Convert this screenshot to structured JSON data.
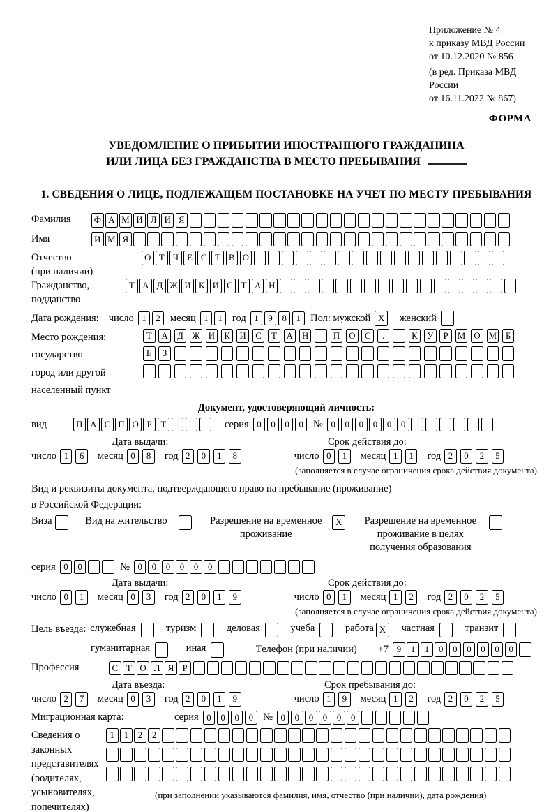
{
  "header": {
    "appendix_lines": [
      "Приложение № 4",
      "к приказу МВД России",
      "от 10.12.2020 № 856"
    ],
    "edition_lines": [
      "(в ред. Приказа МВД России",
      "от 16.11.2022 № 867)"
    ],
    "form_label": "ФОРМА"
  },
  "title": {
    "line1": "УВЕДОМЛЕНИЕ О ПРИБЫТИИ ИНОСТРАННОГО ГРАЖДАНИНА",
    "line2": "ИЛИ ЛИЦА БЕЗ ГРАЖДАНСТВА В МЕСТО ПРЕБЫВАНИЯ"
  },
  "section1_heading": "1. СВЕДЕНИЯ О ЛИЦЕ, ПОДЛЕЖАЩЕМ ПОСТАНОВКЕ НА УЧЕТ ПО МЕСТУ ПРЕБЫВАНИЯ",
  "person": {
    "surname": {
      "label": "Фамилия",
      "cells": {
        "count": 30,
        "value": "ФАМИЛИЯ"
      }
    },
    "name": {
      "label": "Имя",
      "cells": {
        "count": 30,
        "value": "ИМЯ"
      }
    },
    "patronymic": {
      "label1": "Отчество",
      "label2": "(при наличии)",
      "cells": {
        "count": 26,
        "value": "ОТЧЕСТВО"
      }
    },
    "citizenship": {
      "label1": "Гражданство,",
      "label2": "подданство",
      "cells": {
        "count": 28,
        "value": "ТАДЖИКИСТАН"
      }
    },
    "birth_date": {
      "label": "Дата рождения:",
      "day_label": "число",
      "day": {
        "count": 2,
        "value": "12"
      },
      "month_label": "месяц",
      "month": {
        "count": 2,
        "value": "11"
      },
      "year_label": "год",
      "year": {
        "count": 4,
        "value": "1981"
      }
    },
    "sex": {
      "label": "Пол: мужской",
      "male_box": {
        "count": 1,
        "value": "X"
      },
      "female_label": "женский",
      "female_box": {
        "count": 1,
        "value": ""
      }
    },
    "birth_place": {
      "label_lines": [
        "Место рождения:",
        "государство",
        "город или другой",
        "населенный пункт"
      ],
      "rows": [
        {
          "count": 24,
          "value": "ТАДЖИКИСТАН ПОС. КУРМОМБ"
        },
        {
          "count": 24,
          "value": "ЕЗ"
        },
        {
          "count": 24,
          "value": ""
        }
      ]
    }
  },
  "identity_doc": {
    "heading": "Документ, удостоверяющий личность:",
    "kind_label": "вид",
    "kind": {
      "count": 10,
      "value": "ПАСПОРТ"
    },
    "series_label": "серия",
    "series": {
      "count": 4,
      "value": "0000"
    },
    "number_label": "№",
    "number": {
      "count": 12,
      "value": "000000"
    },
    "issue_heading": "Дата выдачи:",
    "issue": {
      "day_label": "число",
      "day": {
        "count": 2,
        "value": "16"
      },
      "month_label": "месяц",
      "month": {
        "count": 2,
        "value": "08"
      },
      "year_label": "год",
      "year": {
        "count": 4,
        "value": "2018"
      }
    },
    "expiry_heading": "Срок действия до:",
    "expiry": {
      "day_label": "число",
      "day": {
        "count": 2,
        "value": "01"
      },
      "month_label": "месяц",
      "month": {
        "count": 2,
        "value": "11"
      },
      "year_label": "год",
      "year": {
        "count": 4,
        "value": "2025"
      }
    },
    "note": "(заполняется в случае ограничения срока действия документа)"
  },
  "stay_doc": {
    "intro_line1": "Вид и реквизиты документа, подтверждающего право на пребывание (проживание)",
    "intro_line2": "в Российской Федерации:",
    "options": [
      {
        "label": "Виза",
        "box": {
          "count": 1,
          "value": ""
        }
      },
      {
        "label": "Вид на жительство",
        "box": {
          "count": 1,
          "value": ""
        }
      },
      {
        "label": "Разрешение на временное проживание",
        "box": {
          "count": 1,
          "value": "X"
        }
      },
      {
        "label": "Разрешение на временное проживание в целях получения образования",
        "box": {
          "count": 1,
          "value": ""
        }
      }
    ],
    "series_label": "серия",
    "series": {
      "count": 4,
      "value": "00"
    },
    "number_label": "№",
    "number": {
      "count": 13,
      "value": "000000"
    },
    "issue_heading": "Дата выдачи:",
    "issue": {
      "day_label": "число",
      "day": {
        "count": 2,
        "value": "01"
      },
      "month_label": "месяц",
      "month": {
        "count": 2,
        "value": "03"
      },
      "year_label": "год",
      "year": {
        "count": 4,
        "value": "2019"
      }
    },
    "expiry_heading": "Срок действия до:",
    "expiry": {
      "day_label": "число",
      "day": {
        "count": 2,
        "value": "01"
      },
      "month_label": "месяц",
      "month": {
        "count": 2,
        "value": "12"
      },
      "year_label": "год",
      "year": {
        "count": 4,
        "value": "2025"
      }
    },
    "note": "(заполняется в случае ограничения срока действия документа)"
  },
  "visit": {
    "purpose_label": "Цель въезда:",
    "purpose_row1": [
      {
        "label": "служебная",
        "box": {
          "count": 1,
          "value": ""
        }
      },
      {
        "label": "туризм",
        "box": {
          "count": 1,
          "value": ""
        }
      },
      {
        "label": "деловая",
        "box": {
          "count": 1,
          "value": ""
        }
      },
      {
        "label": "учеба",
        "box": {
          "count": 1,
          "value": ""
        }
      },
      {
        "label": "работа",
        "box": {
          "count": 1,
          "value": "X"
        }
      },
      {
        "label": "частная",
        "box": {
          "count": 1,
          "value": ""
        }
      },
      {
        "label": "транзит",
        "box": {
          "count": 1,
          "value": ""
        }
      }
    ],
    "purpose_row2": [
      {
        "label": "гуманитарная",
        "box": {
          "count": 1,
          "value": ""
        }
      },
      {
        "label": "иная",
        "box": {
          "count": 1,
          "value": ""
        }
      }
    ],
    "phone_label": "Телефон (при наличии)",
    "phone_prefix": "+7",
    "phone": {
      "count": 10,
      "value": "911000000"
    }
  },
  "profession": {
    "label": "Профессия",
    "cells": {
      "count": 29,
      "value": "СТОЛЯР"
    }
  },
  "entry": {
    "date_heading": "Дата въезда:",
    "date": {
      "day_label": "число",
      "day": {
        "count": 2,
        "value": "27"
      },
      "month_label": "месяц",
      "month": {
        "count": 2,
        "value": "03"
      },
      "year_label": "год",
      "year": {
        "count": 4,
        "value": "2019"
      }
    },
    "until_heading": "Срок пребывания до:",
    "until": {
      "day_label": "число",
      "day": {
        "count": 2,
        "value": "19"
      },
      "month_label": "месяц",
      "month": {
        "count": 2,
        "value": "12"
      },
      "year_label": "год",
      "year": {
        "count": 4,
        "value": "2025"
      }
    }
  },
  "migration_card": {
    "label": "Миграционная карта:",
    "series_label": "серия",
    "series": {
      "count": 4,
      "value": "0000"
    },
    "number_label": "№",
    "number": {
      "count": 11,
      "value": "000000"
    }
  },
  "representatives": {
    "label_lines": [
      "Сведения о",
      "законных",
      "представителях",
      "(родителях,",
      "усыновителях,",
      "попечителях)"
    ],
    "rows": [
      {
        "count": 29,
        "value": "1122"
      },
      {
        "count": 29,
        "value": ""
      },
      {
        "count": 29,
        "value": ""
      }
    ],
    "note": "(при заполнении указываются фамилия, имя, отчество (при наличии), дата рождения)"
  }
}
